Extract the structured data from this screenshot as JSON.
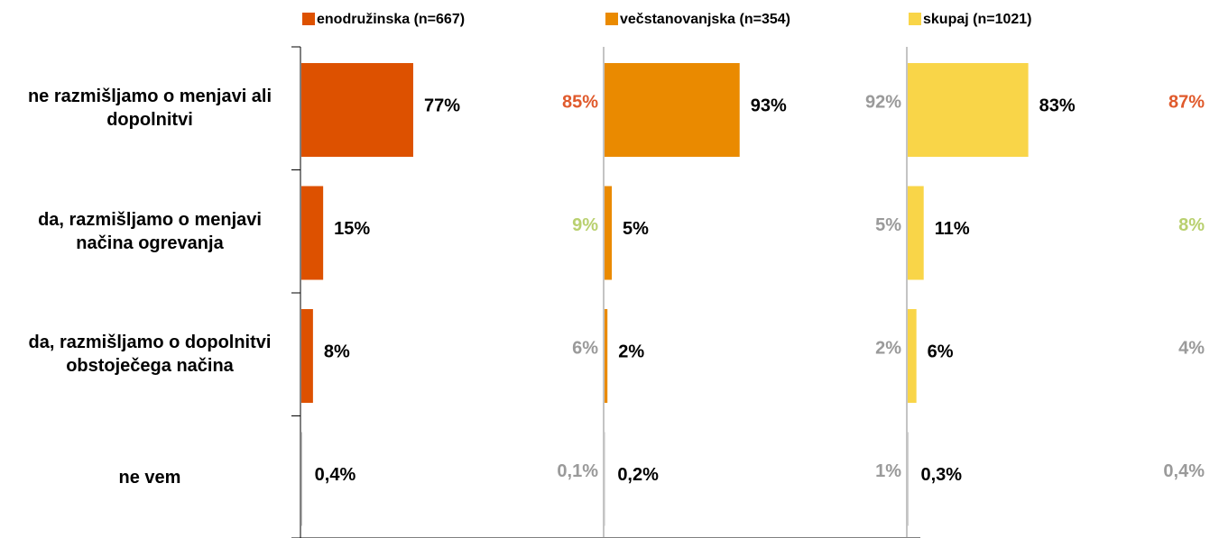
{
  "chart_data": {
    "type": "bar",
    "orientation": "horizontal",
    "categories": [
      "ne razmišljamo o menjavi ali dopolnitvi",
      "da, razmišljamo o menjavi načina ogrevanja",
      "da, razmišljamo o dopolnitvi obstoječega načina",
      "ne vem"
    ],
    "xlim": [
      0,
      100
    ],
    "series": [
      {
        "name": "enodružinska (n=667)",
        "color": "#dd5100",
        "values": [
          77,
          15,
          8,
          0.4
        ],
        "value_labels": [
          "77%",
          "15%",
          "8%",
          "0,4%"
        ],
        "comparison_values": [
          85,
          9,
          6,
          0.1
        ],
        "comparison_labels": [
          "85%",
          "9%",
          "6%",
          "0,1%"
        ],
        "comparison_colors": [
          "#e05a2c",
          "#b9d06f",
          "#9a9a9a",
          "#9a9a9a"
        ]
      },
      {
        "name": "večstanovanjska  (n=354)",
        "color": "#ea8a00",
        "values": [
          93,
          5,
          2,
          0.2
        ],
        "value_labels": [
          "93%",
          "5%",
          "2%",
          "0,2%"
        ],
        "comparison_values": [
          92,
          5,
          2,
          1
        ],
        "comparison_labels": [
          "92%",
          "5%",
          "2%",
          "1%"
        ],
        "comparison_colors": [
          "#9a9a9a",
          "#9a9a9a",
          "#9a9a9a",
          "#9a9a9a"
        ]
      },
      {
        "name": "skupaj (n=1021)",
        "color": "#f9d548",
        "values": [
          83,
          11,
          6,
          0.3
        ],
        "value_labels": [
          "83%",
          "11%",
          "6%",
          "0,3%"
        ],
        "comparison_values": [
          87,
          8,
          4,
          0.4
        ],
        "comparison_labels": [
          "87%",
          "8%",
          "4%",
          "0,4%"
        ],
        "comparison_colors": [
          "#e05a2c",
          "#b9d06f",
          "#9a9a9a",
          "#9a9a9a"
        ]
      }
    ]
  }
}
